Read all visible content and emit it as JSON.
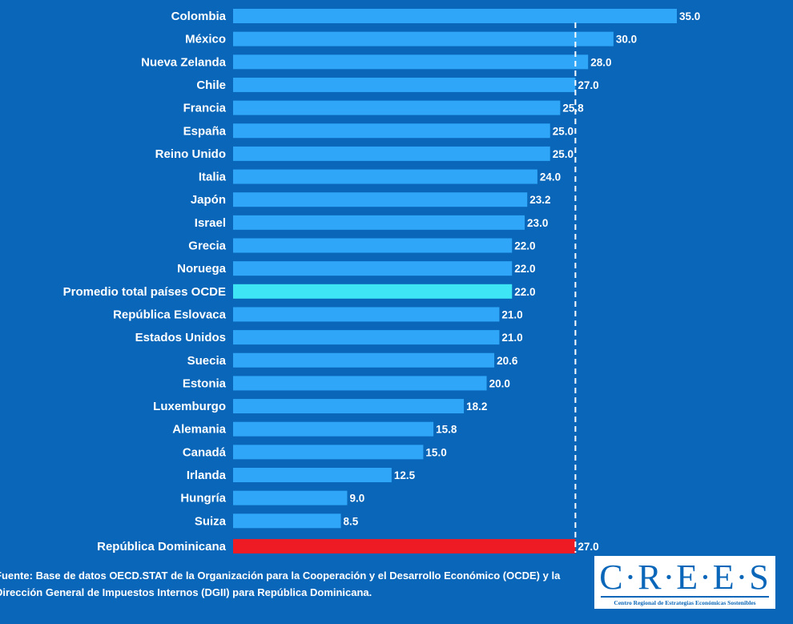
{
  "chart_data": {
    "type": "bar",
    "orientation": "horizontal",
    "categories": [
      "Colombia",
      "México",
      "Nueva Zelanda",
      "Chile",
      "Francia",
      "España",
      "Reino Unido",
      "Italia",
      "Japón",
      "Israel",
      "Grecia",
      "Noruega",
      "Promedio total países OCDE",
      "República Eslovaca",
      "Estados Unidos",
      "Suecia",
      "Estonia",
      "Luxemburgo",
      "Alemania",
      "Canadá",
      "Irlanda",
      "Hungría",
      "Suiza",
      "República Dominicana"
    ],
    "values": [
      35.0,
      30.0,
      28.0,
      27.0,
      25.8,
      25.0,
      25.0,
      24.0,
      23.2,
      23.0,
      22.0,
      22.0,
      22.0,
      21.0,
      21.0,
      20.6,
      20.0,
      18.2,
      15.8,
      15.0,
      12.5,
      9.0,
      8.5,
      27.0
    ],
    "value_labels": [
      "35.0",
      "30.0",
      "28.0",
      "27.0",
      "25.8",
      "25.0",
      "25.0",
      "24.0",
      "23.2",
      "23.0",
      "22.0",
      "22.0",
      "22.0",
      "21.0",
      "21.0",
      "20.6",
      "20.0",
      "18.2",
      "15.8",
      "15.0",
      "12.5",
      "9.0",
      "8.5",
      "27.0"
    ],
    "highlight": {
      "Promedio total países OCDE": "#3ee6f5",
      "República Dominicana": "#ee1b24"
    },
    "reference_line": {
      "value": 27.0,
      "style": "dashed"
    },
    "xlim": [
      0,
      35
    ],
    "grid": false
  },
  "colors": {
    "background": "#0a66b8",
    "bar": "#2fa6f7",
    "text": "#ffffff"
  },
  "footer": {
    "source_label": "Fuente:",
    "source_text": " Base de datos OECD.STAT de la Organización para la Cooperación y el Desarrollo Económico (OCDE) y la Dirección General de Impuestos Internos (DGII) para República Dominicana."
  },
  "logo": {
    "name": "C·R·E·E·S",
    "subtitle": "Centro Regional de Estrategias Económicas Sostenibles"
  }
}
